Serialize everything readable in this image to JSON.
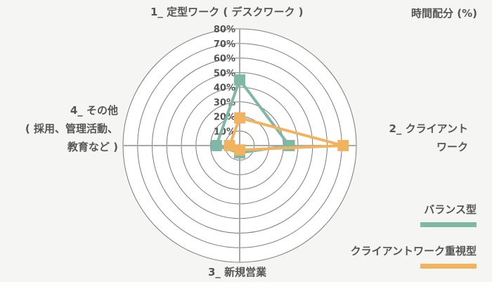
{
  "chart_data": {
    "type": "radar",
    "title": "",
    "unit_label": "時間配分 (%)",
    "axes": [
      {
        "id": 1,
        "label_lines": [
          "1_ 定型ワーク ( デスクワーク )"
        ]
      },
      {
        "id": 2,
        "label_lines": [
          "2_ クライアント",
          "ワーク"
        ]
      },
      {
        "id": 3,
        "label_lines": [
          "3_ 新規営業"
        ]
      },
      {
        "id": 4,
        "label_lines": [
          "4_ その他",
          "( 採用、管理活動、",
          "教育など )"
        ]
      }
    ],
    "categories": [
      "1_ 定型ワーク ( デスクワーク )",
      "2_ クライアントワーク",
      "3_ 新規営業",
      "4_ その他 ( 採用、管理活動、教育など )"
    ],
    "rlim": [
      0,
      80
    ],
    "ticks": [
      "10%",
      "20%",
      "30%",
      "40%",
      "50%",
      "60%",
      "70%",
      "80%"
    ],
    "grid": true,
    "legend_position": "right-bottom",
    "series": [
      {
        "name": "バランス型",
        "color": "#7fb8a4",
        "values": [
          45,
          34,
          5,
          16
        ]
      },
      {
        "name": "クライアントワーク重視型",
        "color": "#f2b35e",
        "values": [
          19,
          71,
          3,
          7
        ]
      }
    ]
  },
  "labels": {
    "unit": "時間配分 (%)",
    "axis1": "1_ 定型ワーク ( デスクワーク )",
    "axis2_line1": "2_ クライアント",
    "axis2_line2": "ワーク",
    "axis3": "3_ 新規営業",
    "axis4_line1": "4_ その他",
    "axis4_line2": "( 採用、管理活動、",
    "axis4_line3": "教育など )"
  },
  "legend": [
    {
      "label": "バランス型",
      "color": "#7fb8a4"
    },
    {
      "label": "クライアントワーク重視型",
      "color": "#f2b35e"
    }
  ]
}
